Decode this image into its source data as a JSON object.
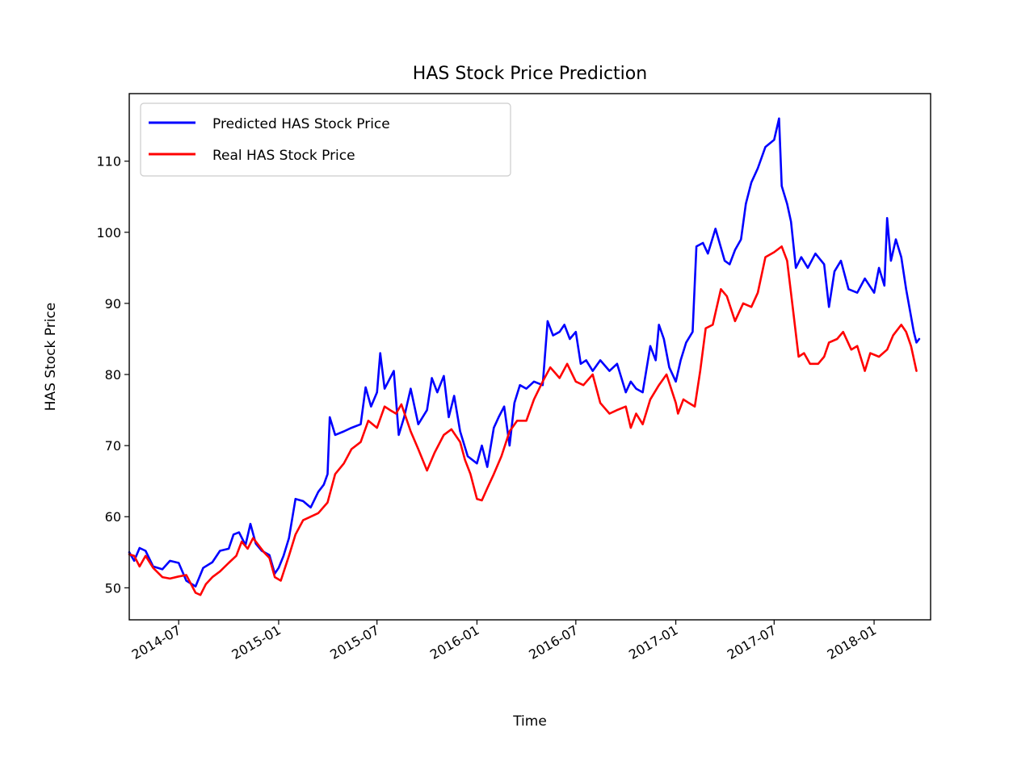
{
  "chart_data": {
    "type": "line",
    "title": "HAS Stock Price Prediction",
    "xlabel": "Time",
    "ylabel": "HAS Stock Price",
    "x_range": [
      "2014-04-01",
      "2018-04-15"
    ],
    "ylim": [
      45.5,
      119.5
    ],
    "x_ticks": [
      "2014-07-01",
      "2015-01-01",
      "2015-07-01",
      "2016-01-01",
      "2016-07-01",
      "2017-01-01",
      "2017-07-01",
      "2018-01-01"
    ],
    "x_tick_labels": [
      "2014-07",
      "2015-01",
      "2015-07",
      "2016-01",
      "2016-07",
      "2017-01",
      "2017-07",
      "2018-01"
    ],
    "y_ticks": [
      50,
      60,
      70,
      80,
      90,
      100,
      110
    ],
    "grid": false,
    "legend_position": "top-left",
    "series": [
      {
        "name": "Predicted HAS Stock Price",
        "color": "#0000ff",
        "points": [
          [
            "2014-04-01",
            55.0
          ],
          [
            "2014-04-10",
            53.8
          ],
          [
            "2014-04-20",
            55.6
          ],
          [
            "2014-05-01",
            55.2
          ],
          [
            "2014-05-15",
            53.0
          ],
          [
            "2014-06-01",
            52.6
          ],
          [
            "2014-06-15",
            53.8
          ],
          [
            "2014-07-01",
            53.5
          ],
          [
            "2014-07-15",
            51.0
          ],
          [
            "2014-08-01",
            50.2
          ],
          [
            "2014-08-15",
            52.8
          ],
          [
            "2014-09-01",
            53.6
          ],
          [
            "2014-09-15",
            55.2
          ],
          [
            "2014-10-01",
            55.5
          ],
          [
            "2014-10-10",
            57.5
          ],
          [
            "2014-10-20",
            57.8
          ],
          [
            "2014-11-01",
            56.0
          ],
          [
            "2014-11-10",
            59.0
          ],
          [
            "2014-11-20",
            56.2
          ],
          [
            "2014-12-01",
            55.2
          ],
          [
            "2014-12-15",
            54.6
          ],
          [
            "2014-12-25",
            52.0
          ],
          [
            "2015-01-01",
            52.8
          ],
          [
            "2015-01-10",
            54.5
          ],
          [
            "2015-01-20",
            57.0
          ],
          [
            "2015-02-01",
            62.5
          ],
          [
            "2015-02-15",
            62.2
          ],
          [
            "2015-03-01",
            61.3
          ],
          [
            "2015-03-15",
            63.5
          ],
          [
            "2015-03-25",
            64.5
          ],
          [
            "2015-04-01",
            66.0
          ],
          [
            "2015-04-05",
            74.0
          ],
          [
            "2015-04-15",
            71.5
          ],
          [
            "2015-05-01",
            72.0
          ],
          [
            "2015-05-15",
            72.5
          ],
          [
            "2015-06-01",
            73.0
          ],
          [
            "2015-06-10",
            78.2
          ],
          [
            "2015-06-20",
            75.5
          ],
          [
            "2015-07-01",
            77.5
          ],
          [
            "2015-07-07",
            83.0
          ],
          [
            "2015-07-15",
            78.0
          ],
          [
            "2015-08-01",
            80.5
          ],
          [
            "2015-08-10",
            71.5
          ],
          [
            "2015-08-20",
            74.0
          ],
          [
            "2015-09-01",
            78.0
          ],
          [
            "2015-09-15",
            73.0
          ],
          [
            "2015-10-01",
            75.0
          ],
          [
            "2015-10-10",
            79.5
          ],
          [
            "2015-10-20",
            77.5
          ],
          [
            "2015-11-01",
            79.8
          ],
          [
            "2015-11-10",
            74.0
          ],
          [
            "2015-11-20",
            77.0
          ],
          [
            "2015-12-01",
            72.0
          ],
          [
            "2015-12-15",
            68.5
          ],
          [
            "2016-01-01",
            67.5
          ],
          [
            "2016-01-10",
            70.0
          ],
          [
            "2016-01-20",
            67.0
          ],
          [
            "2016-02-01",
            72.5
          ],
          [
            "2016-02-10",
            74.0
          ],
          [
            "2016-02-20",
            75.5
          ],
          [
            "2016-03-01",
            70.0
          ],
          [
            "2016-03-10",
            76.0
          ],
          [
            "2016-03-20",
            78.5
          ],
          [
            "2016-04-01",
            78.0
          ],
          [
            "2016-04-15",
            79.0
          ],
          [
            "2016-05-01",
            78.5
          ],
          [
            "2016-05-10",
            87.5
          ],
          [
            "2016-05-20",
            85.5
          ],
          [
            "2016-06-01",
            86.0
          ],
          [
            "2016-06-10",
            87.0
          ],
          [
            "2016-06-20",
            85.0
          ],
          [
            "2016-07-01",
            86.0
          ],
          [
            "2016-07-10",
            81.5
          ],
          [
            "2016-07-20",
            82.0
          ],
          [
            "2016-08-01",
            80.5
          ],
          [
            "2016-08-15",
            82.0
          ],
          [
            "2016-09-01",
            80.5
          ],
          [
            "2016-09-15",
            81.5
          ],
          [
            "2016-10-01",
            77.5
          ],
          [
            "2016-10-10",
            79.0
          ],
          [
            "2016-10-20",
            78.0
          ],
          [
            "2016-11-01",
            77.5
          ],
          [
            "2016-11-15",
            84.0
          ],
          [
            "2016-11-25",
            82.0
          ],
          [
            "2016-12-01",
            87.0
          ],
          [
            "2016-12-10",
            85.0
          ],
          [
            "2016-12-20",
            81.0
          ],
          [
            "2017-01-01",
            79.0
          ],
          [
            "2017-01-10",
            82.0
          ],
          [
            "2017-01-20",
            84.5
          ],
          [
            "2017-02-01",
            86.0
          ],
          [
            "2017-02-08",
            98.0
          ],
          [
            "2017-02-20",
            98.5
          ],
          [
            "2017-03-01",
            97.0
          ],
          [
            "2017-03-15",
            100.5
          ],
          [
            "2017-04-01",
            96.0
          ],
          [
            "2017-04-10",
            95.5
          ],
          [
            "2017-04-20",
            97.5
          ],
          [
            "2017-05-01",
            99.0
          ],
          [
            "2017-05-10",
            104.0
          ],
          [
            "2017-05-20",
            107.0
          ],
          [
            "2017-06-01",
            109.0
          ],
          [
            "2017-06-15",
            112.0
          ],
          [
            "2017-07-01",
            113.0
          ],
          [
            "2017-07-10",
            116.0
          ],
          [
            "2017-07-15",
            106.5
          ],
          [
            "2017-07-25",
            104.0
          ],
          [
            "2017-08-01",
            101.5
          ],
          [
            "2017-08-10",
            95.0
          ],
          [
            "2017-08-20",
            96.5
          ],
          [
            "2017-09-01",
            95.0
          ],
          [
            "2017-09-15",
            97.0
          ],
          [
            "2017-10-01",
            95.5
          ],
          [
            "2017-10-10",
            89.5
          ],
          [
            "2017-10-20",
            94.5
          ],
          [
            "2017-11-01",
            96.0
          ],
          [
            "2017-11-15",
            92.0
          ],
          [
            "2017-12-01",
            91.5
          ],
          [
            "2017-12-15",
            93.5
          ],
          [
            "2018-01-01",
            91.5
          ],
          [
            "2018-01-10",
            95.0
          ],
          [
            "2018-01-20",
            92.5
          ],
          [
            "2018-01-25",
            102.0
          ],
          [
            "2018-02-01",
            96.0
          ],
          [
            "2018-02-10",
            99.0
          ],
          [
            "2018-02-20",
            96.5
          ],
          [
            "2018-03-01",
            92.0
          ],
          [
            "2018-03-15",
            86.0
          ],
          [
            "2018-03-20",
            84.5
          ],
          [
            "2018-03-25",
            85.0
          ]
        ]
      },
      {
        "name": "Real HAS Stock Price",
        "color": "#ff0000",
        "points": [
          [
            "2014-04-01",
            54.7
          ],
          [
            "2014-04-10",
            54.5
          ],
          [
            "2014-04-20",
            53.0
          ],
          [
            "2014-05-01",
            54.5
          ],
          [
            "2014-05-15",
            52.8
          ],
          [
            "2014-06-01",
            51.5
          ],
          [
            "2014-06-15",
            51.3
          ],
          [
            "2014-07-01",
            51.6
          ],
          [
            "2014-07-15",
            51.8
          ],
          [
            "2014-08-01",
            49.3
          ],
          [
            "2014-08-10",
            49.0
          ],
          [
            "2014-08-20",
            50.5
          ],
          [
            "2014-09-01",
            51.5
          ],
          [
            "2014-09-15",
            52.3
          ],
          [
            "2014-10-01",
            53.5
          ],
          [
            "2014-10-15",
            54.5
          ],
          [
            "2014-10-25",
            56.5
          ],
          [
            "2014-11-05",
            55.5
          ],
          [
            "2014-11-15",
            57.0
          ],
          [
            "2014-11-25",
            56.0
          ],
          [
            "2014-12-05",
            55.0
          ],
          [
            "2014-12-15",
            54.2
          ],
          [
            "2014-12-25",
            51.5
          ],
          [
            "2015-01-05",
            51.0
          ],
          [
            "2015-01-20",
            54.5
          ],
          [
            "2015-02-01",
            57.5
          ],
          [
            "2015-02-15",
            59.5
          ],
          [
            "2015-03-01",
            60.0
          ],
          [
            "2015-03-15",
            60.5
          ],
          [
            "2015-04-01",
            62.0
          ],
          [
            "2015-04-15",
            66.0
          ],
          [
            "2015-05-01",
            67.5
          ],
          [
            "2015-05-15",
            69.5
          ],
          [
            "2015-06-01",
            70.5
          ],
          [
            "2015-06-15",
            73.5
          ],
          [
            "2015-07-01",
            72.5
          ],
          [
            "2015-07-15",
            75.5
          ],
          [
            "2015-07-25",
            75.0
          ],
          [
            "2015-08-05",
            74.5
          ],
          [
            "2015-08-15",
            75.8
          ],
          [
            "2015-09-01",
            72.0
          ],
          [
            "2015-09-15",
            69.5
          ],
          [
            "2015-10-01",
            66.5
          ],
          [
            "2015-10-15",
            69.0
          ],
          [
            "2015-11-01",
            71.5
          ],
          [
            "2015-11-15",
            72.3
          ],
          [
            "2015-12-01",
            70.5
          ],
          [
            "2015-12-10",
            68.0
          ],
          [
            "2015-12-20",
            66.0
          ],
          [
            "2016-01-01",
            62.5
          ],
          [
            "2016-01-10",
            62.3
          ],
          [
            "2016-01-20",
            64.0
          ],
          [
            "2016-02-01",
            66.0
          ],
          [
            "2016-02-15",
            68.5
          ],
          [
            "2016-03-01",
            72.0
          ],
          [
            "2016-03-15",
            73.5
          ],
          [
            "2016-04-01",
            73.5
          ],
          [
            "2016-04-15",
            76.5
          ],
          [
            "2016-05-01",
            79.0
          ],
          [
            "2016-05-15",
            81.0
          ],
          [
            "2016-06-01",
            79.5
          ],
          [
            "2016-06-15",
            81.5
          ],
          [
            "2016-07-01",
            79.0
          ],
          [
            "2016-07-15",
            78.5
          ],
          [
            "2016-08-01",
            80.0
          ],
          [
            "2016-08-15",
            76.0
          ],
          [
            "2016-09-01",
            74.5
          ],
          [
            "2016-09-15",
            75.0
          ],
          [
            "2016-10-01",
            75.5
          ],
          [
            "2016-10-10",
            72.5
          ],
          [
            "2016-10-20",
            74.5
          ],
          [
            "2016-11-01",
            73.0
          ],
          [
            "2016-11-15",
            76.5
          ],
          [
            "2016-12-01",
            78.5
          ],
          [
            "2016-12-15",
            80.0
          ],
          [
            "2017-01-01",
            76.0
          ],
          [
            "2017-01-05",
            74.5
          ],
          [
            "2017-01-15",
            76.5
          ],
          [
            "2017-01-25",
            76.0
          ],
          [
            "2017-02-05",
            75.5
          ],
          [
            "2017-02-15",
            80.5
          ],
          [
            "2017-02-25",
            86.5
          ],
          [
            "2017-03-10",
            87.0
          ],
          [
            "2017-03-25",
            92.0
          ],
          [
            "2017-04-05",
            91.0
          ],
          [
            "2017-04-20",
            87.5
          ],
          [
            "2017-05-05",
            90.0
          ],
          [
            "2017-05-20",
            89.5
          ],
          [
            "2017-06-01",
            91.5
          ],
          [
            "2017-06-15",
            96.5
          ],
          [
            "2017-07-01",
            97.2
          ],
          [
            "2017-07-15",
            98.0
          ],
          [
            "2017-07-25",
            96.0
          ],
          [
            "2017-08-05",
            89.0
          ],
          [
            "2017-08-15",
            82.5
          ],
          [
            "2017-08-25",
            83.0
          ],
          [
            "2017-09-05",
            81.5
          ],
          [
            "2017-09-20",
            81.5
          ],
          [
            "2017-10-01",
            82.5
          ],
          [
            "2017-10-10",
            84.5
          ],
          [
            "2017-10-25",
            85.0
          ],
          [
            "2017-11-05",
            86.0
          ],
          [
            "2017-11-20",
            83.5
          ],
          [
            "2017-12-01",
            84.0
          ],
          [
            "2017-12-15",
            80.5
          ],
          [
            "2017-12-25",
            83.0
          ],
          [
            "2018-01-10",
            82.5
          ],
          [
            "2018-01-25",
            83.5
          ],
          [
            "2018-02-05",
            85.5
          ],
          [
            "2018-02-20",
            87.0
          ],
          [
            "2018-03-01",
            86.0
          ],
          [
            "2018-03-10",
            84.0
          ],
          [
            "2018-03-20",
            80.5
          ]
        ]
      }
    ]
  }
}
